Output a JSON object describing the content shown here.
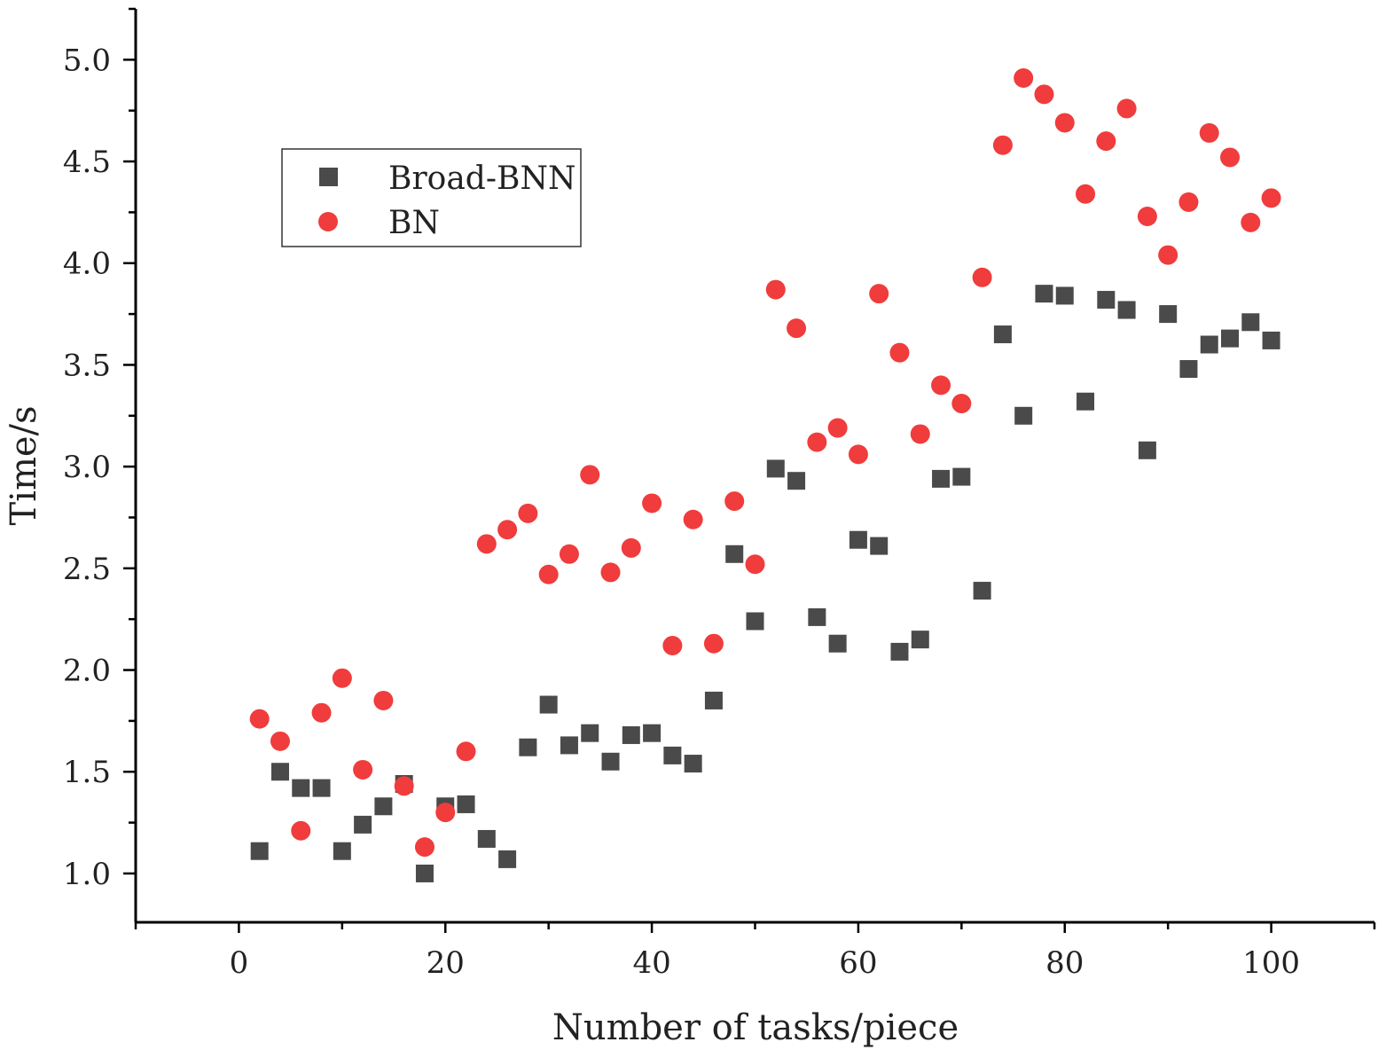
{
  "chart_data": {
    "type": "scatter",
    "title": "",
    "xlabel": "Number of tasks/piece",
    "ylabel": "Time/s",
    "xlim": [
      -10,
      110
    ],
    "ylim": [
      0.76,
      5.25
    ],
    "xticks": [
      "0",
      "20",
      "40",
      "60",
      "80",
      "100"
    ],
    "xtick_values": [
      0,
      20,
      40,
      60,
      80,
      100
    ],
    "yticks": [
      "1.0",
      "1.5",
      "2.0",
      "2.5",
      "3.0",
      "3.5",
      "4.0",
      "4.5",
      "5.0"
    ],
    "ytick_values": [
      1.0,
      1.5,
      2.0,
      2.5,
      3.0,
      3.5,
      4.0,
      4.5,
      5.0
    ],
    "grid": false,
    "legend_placement": "upper-left",
    "x": [
      2,
      4,
      6,
      8,
      10,
      12,
      14,
      16,
      18,
      20,
      22,
      24,
      26,
      28,
      30,
      32,
      34,
      36,
      38,
      40,
      42,
      44,
      46,
      48,
      50,
      52,
      54,
      56,
      58,
      60,
      62,
      64,
      66,
      68,
      70,
      72,
      74,
      76,
      78,
      80,
      82,
      84,
      86,
      88,
      90,
      92,
      94,
      96,
      98,
      100
    ],
    "series": [
      {
        "name": "Broad-BNN",
        "marker": "square",
        "color": "#4a4a4a",
        "values": [
          1.11,
          1.5,
          1.42,
          1.42,
          1.11,
          1.24,
          1.33,
          1.44,
          1.0,
          1.33,
          1.34,
          1.17,
          1.07,
          1.62,
          1.83,
          1.63,
          1.69,
          1.55,
          1.68,
          1.69,
          1.58,
          1.54,
          1.85,
          2.57,
          2.24,
          2.99,
          2.93,
          2.26,
          2.13,
          2.64,
          2.61,
          2.09,
          2.15,
          2.94,
          2.95,
          2.39,
          3.65,
          3.25,
          3.85,
          3.84,
          3.32,
          3.82,
          3.77,
          3.08,
          3.75,
          3.48,
          3.6,
          3.63,
          3.71,
          3.62
        ]
      },
      {
        "name": "BN",
        "marker": "circle",
        "color": "#f03c3c",
        "values": [
          1.76,
          1.65,
          1.21,
          1.79,
          1.96,
          1.51,
          1.85,
          1.43,
          1.13,
          1.3,
          1.6,
          2.62,
          2.69,
          2.77,
          2.47,
          2.57,
          2.96,
          2.48,
          2.6,
          2.82,
          2.12,
          2.74,
          2.13,
          2.83,
          2.52,
          3.87,
          3.68,
          3.12,
          3.19,
          3.06,
          3.85,
          3.56,
          3.16,
          3.4,
          3.31,
          3.93,
          4.58,
          4.91,
          4.83,
          4.69,
          4.34,
          4.6,
          4.76,
          4.23,
          4.04,
          4.3,
          4.64,
          4.52,
          4.2,
          4.32
        ]
      }
    ]
  }
}
